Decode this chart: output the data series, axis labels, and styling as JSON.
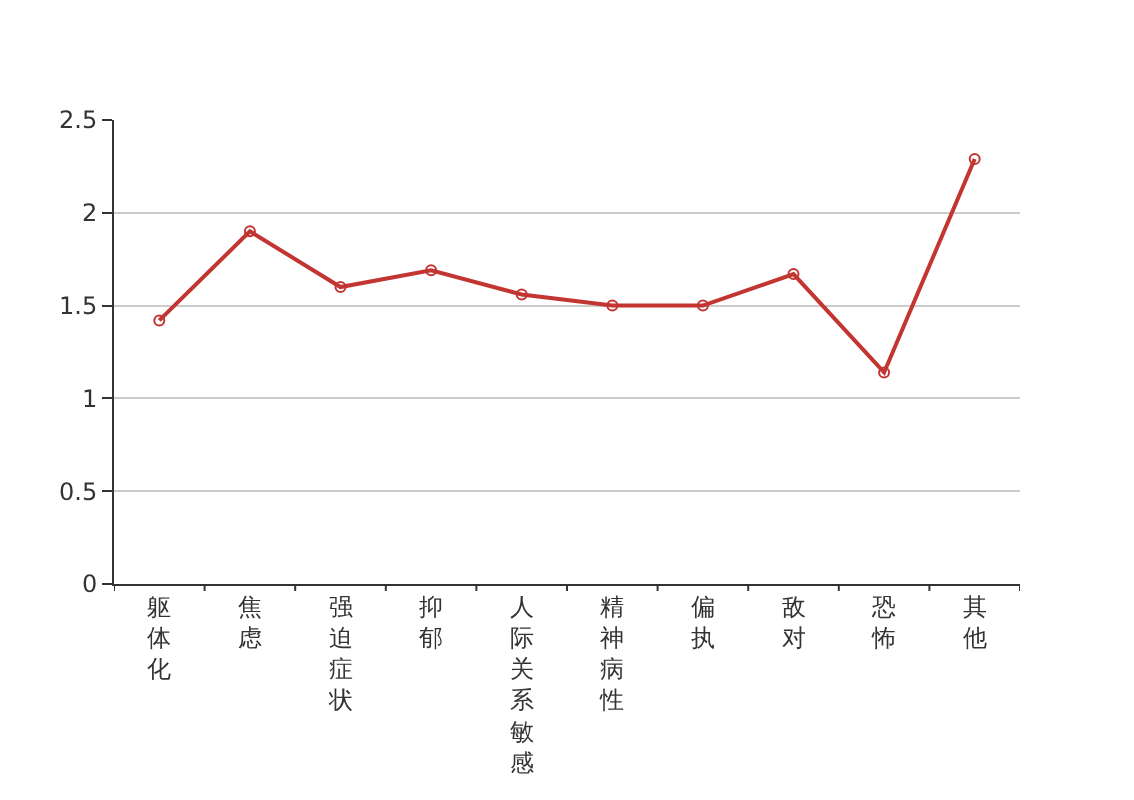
{
  "chart_data": {
    "type": "line",
    "categories": [
      "躯体化",
      "焦虑",
      "强迫症状",
      "抑郁",
      "人际关系敏感",
      "精神病性",
      "偏执",
      "敌对",
      "恐怖",
      "其他"
    ],
    "series": [
      {
        "color": "#c23531",
        "values": [
          1.42,
          1.9,
          1.6,
          1.69,
          1.56,
          1.5,
          1.5,
          1.67,
          1.14,
          2.29
        ]
      }
    ],
    "ylim": [
      0,
      2.5
    ],
    "yticks": [
      0,
      0.5,
      1,
      1.5,
      2,
      2.5
    ],
    "grid": "y",
    "marker": "circle",
    "line_style": "solid"
  }
}
